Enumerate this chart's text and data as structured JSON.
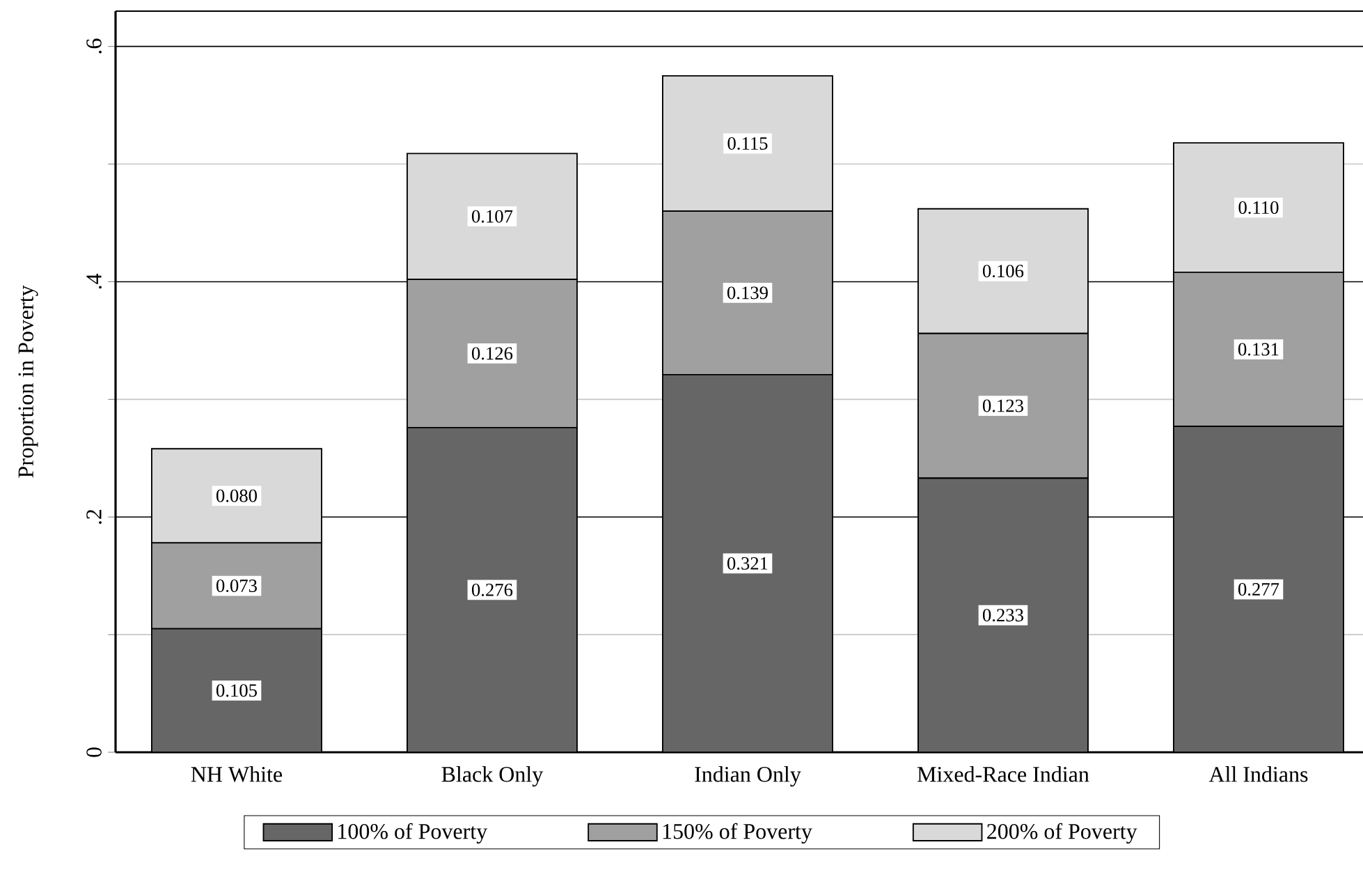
{
  "chart_data": {
    "type": "bar",
    "stacked": true,
    "ylabel": "Proportion in Poverty",
    "categories": [
      "NH White",
      "Black Only",
      "Indian Only",
      "Mixed-Race Indian",
      "All Indians"
    ],
    "series": [
      {
        "name": "100% of Poverty",
        "color": "#666666",
        "values": [
          0.105,
          0.276,
          0.321,
          0.233,
          0.277
        ],
        "value_labels": [
          "0.105",
          "0.276",
          "0.321",
          "0.233",
          "0.277"
        ]
      },
      {
        "name": "150% of Poverty",
        "color": "#a0a0a0",
        "values": [
          0.073,
          0.126,
          0.139,
          0.123,
          0.131
        ],
        "value_labels": [
          "0.073",
          "0.126",
          "0.139",
          "0.123",
          "0.131"
        ]
      },
      {
        "name": "200% of Poverty",
        "color": "#d9d9d9",
        "values": [
          0.08,
          0.107,
          0.115,
          0.106,
          0.11
        ],
        "value_labels": [
          "0.080",
          "0.107",
          "0.115",
          "0.106",
          "0.110"
        ]
      }
    ],
    "ylim": [
      0,
      0.63
    ],
    "yticks": [
      {
        "value": 0,
        "label": "0"
      },
      {
        "value": 0.1,
        "label": null
      },
      {
        "value": 0.2,
        "label": ".2"
      },
      {
        "value": 0.3,
        "label": null
      },
      {
        "value": 0.4,
        "label": ".4"
      },
      {
        "value": 0.5,
        "label": null
      },
      {
        "value": 0.6,
        "label": ".6"
      }
    ],
    "grid": "y",
    "legend": "bottom"
  }
}
